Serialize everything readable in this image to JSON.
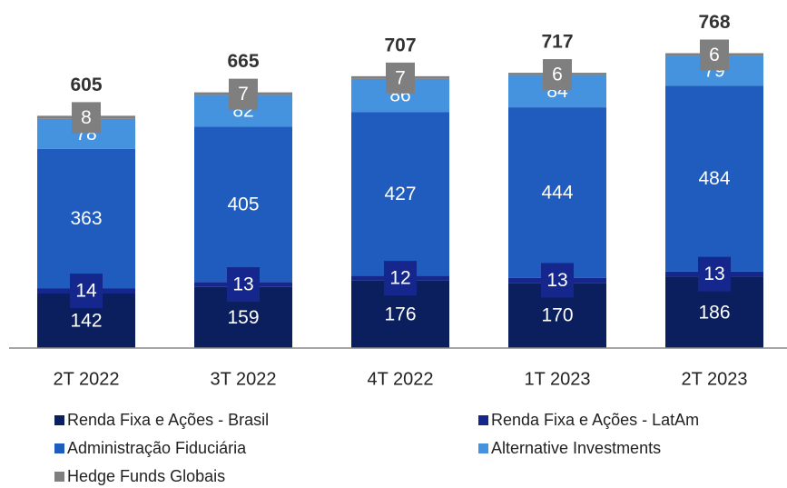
{
  "chart_data": {
    "type": "stacked_bar",
    "categories": [
      "2T 2022",
      "3T 2022",
      "4T 2022",
      "1T 2023",
      "2T 2023"
    ],
    "series": [
      {
        "name": "Renda Fixa e Ações - Brasil",
        "color": "#0b1f5e",
        "values": [
          142,
          159,
          176,
          170,
          186
        ]
      },
      {
        "name": "Renda Fixa e Ações - LatAm",
        "color": "#15278c",
        "values": [
          14,
          13,
          12,
          13,
          13
        ]
      },
      {
        "name": "Administração Fiduciária",
        "color": "#1f5cbd",
        "values": [
          363,
          405,
          427,
          444,
          484
        ]
      },
      {
        "name": "Alternative Investments",
        "color": "#4592df",
        "values": [
          78,
          82,
          86,
          84,
          79
        ]
      },
      {
        "name": "Hedge Funds Globais",
        "color": "#7f7f7f",
        "values": [
          8,
          7,
          7,
          6,
          6
        ]
      }
    ],
    "totals": [
      605,
      665,
      707,
      717,
      768
    ],
    "ylim": [
      0,
      800
    ]
  }
}
